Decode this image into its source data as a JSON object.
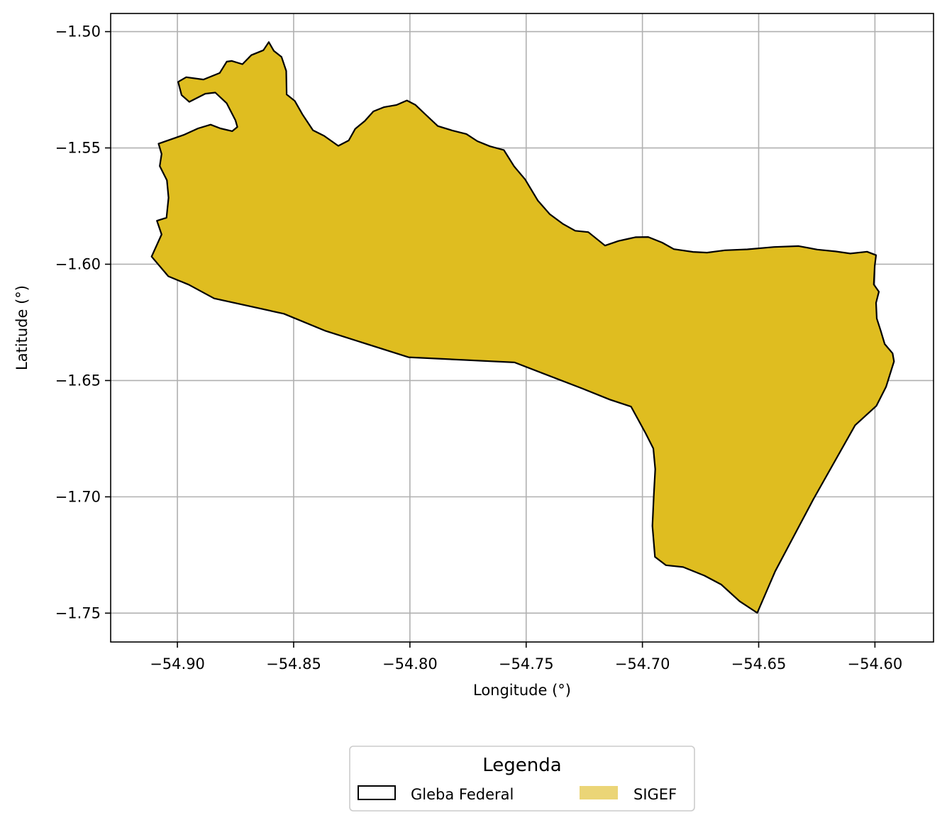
{
  "chart_data": {
    "type": "map",
    "xlabel": "Longitude (°)",
    "ylabel": "Latitude (°)",
    "xlim": [
      -54.9287,
      -54.5748
    ],
    "ylim": [
      -1.7624,
      -1.4922
    ],
    "grid": true,
    "x_ticks": [
      -54.9,
      -54.85,
      -54.8,
      -54.75,
      -54.7,
      -54.65,
      -54.6
    ],
    "x_tick_labels": [
      "−54.90",
      "−54.85",
      "−54.80",
      "−54.75",
      "−54.70",
      "−54.65",
      "−54.60"
    ],
    "y_ticks": [
      -1.5,
      -1.55,
      -1.6,
      -1.65,
      -1.7,
      -1.75
    ],
    "y_tick_labels": [
      "−1.50",
      "−1.55",
      "−1.60",
      "−1.65",
      "−1.70",
      "−1.75"
    ],
    "colors": {
      "gleba_edge": "#000000",
      "sigef_fill": "#dfbd20",
      "legend_sigef": "#ebd577",
      "grid": "#b0b0b0"
    },
    "legend": {
      "title": "Legenda",
      "placement": "bottom-center",
      "entries": [
        {
          "label": "Gleba Federal",
          "style": "outline"
        },
        {
          "label": "SIGEF",
          "style": "fill"
        }
      ]
    },
    "polygon": [
      [
        -54.9081,
        -1.5482
      ],
      [
        -54.8973,
        -1.5444
      ],
      [
        -54.8911,
        -1.5416
      ],
      [
        -54.8857,
        -1.54
      ],
      [
        -54.8815,
        -1.5416
      ],
      [
        -54.8764,
        -1.5428
      ],
      [
        -54.8742,
        -1.541
      ],
      [
        -54.875,
        -1.5382
      ],
      [
        -54.8788,
        -1.5308
      ],
      [
        -54.8837,
        -1.5262
      ],
      [
        -54.888,
        -1.5267
      ],
      [
        -54.8949,
        -1.5302
      ],
      [
        -54.8982,
        -1.5273
      ],
      [
        -54.8997,
        -1.5216
      ],
      [
        -54.8962,
        -1.5196
      ],
      [
        -54.8888,
        -1.5206
      ],
      [
        -54.8818,
        -1.5178
      ],
      [
        -54.8788,
        -1.5129
      ],
      [
        -54.8766,
        -1.5126
      ],
      [
        -54.872,
        -1.514
      ],
      [
        -54.8682,
        -1.5101
      ],
      [
        -54.863,
        -1.508
      ],
      [
        -54.8607,
        -1.5045
      ],
      [
        -54.8585,
        -1.5083
      ],
      [
        -54.8552,
        -1.5109
      ],
      [
        -54.8532,
        -1.5169
      ],
      [
        -54.853,
        -1.527
      ],
      [
        -54.8495,
        -1.5298
      ],
      [
        -54.8462,
        -1.5356
      ],
      [
        -54.8417,
        -1.5424
      ],
      [
        -54.8369,
        -1.5448
      ],
      [
        -54.8308,
        -1.5491
      ],
      [
        -54.8263,
        -1.5468
      ],
      [
        -54.8235,
        -1.5418
      ],
      [
        -54.8194,
        -1.5384
      ],
      [
        -54.8157,
        -1.5343
      ],
      [
        -54.8112,
        -1.5325
      ],
      [
        -54.8057,
        -1.5315
      ],
      [
        -54.8013,
        -1.5296
      ],
      [
        -54.7976,
        -1.5315
      ],
      [
        -54.7931,
        -1.5358
      ],
      [
        -54.788,
        -1.5406
      ],
      [
        -54.7818,
        -1.5425
      ],
      [
        -54.7757,
        -1.544
      ],
      [
        -54.771,
        -1.5471
      ],
      [
        -54.7656,
        -1.5493
      ],
      [
        -54.7596,
        -1.5509
      ],
      [
        -54.7552,
        -1.5579
      ],
      [
        -54.7504,
        -1.5636
      ],
      [
        -54.745,
        -1.5726
      ],
      [
        -54.7399,
        -1.5784
      ],
      [
        -54.7343,
        -1.5826
      ],
      [
        -54.7289,
        -1.5856
      ],
      [
        -54.7233,
        -1.5862
      ],
      [
        -54.7161,
        -1.592
      ],
      [
        -54.7103,
        -1.59
      ],
      [
        -54.703,
        -1.5884
      ],
      [
        -54.6975,
        -1.5883
      ],
      [
        -54.6915,
        -1.5907
      ],
      [
        -54.6865,
        -1.5935
      ],
      [
        -54.6782,
        -1.5947
      ],
      [
        -54.6722,
        -1.595
      ],
      [
        -54.6645,
        -1.594
      ],
      [
        -54.6549,
        -1.5936
      ],
      [
        -54.6434,
        -1.5926
      ],
      [
        -54.6328,
        -1.5922
      ],
      [
        -54.6248,
        -1.5937
      ],
      [
        -54.617,
        -1.5945
      ],
      [
        -54.6106,
        -1.5954
      ],
      [
        -54.6034,
        -1.5946
      ],
      [
        -54.5995,
        -1.5961
      ],
      [
        -54.6001,
        -1.6008
      ],
      [
        -54.6005,
        -1.6087
      ],
      [
        -54.5983,
        -1.6118
      ],
      [
        -54.5995,
        -1.6166
      ],
      [
        -54.5992,
        -1.6233
      ],
      [
        -54.5975,
        -1.6286
      ],
      [
        -54.5958,
        -1.6343
      ],
      [
        -54.5924,
        -1.6383
      ],
      [
        -54.5918,
        -1.6418
      ],
      [
        -54.5952,
        -1.6527
      ],
      [
        -54.5994,
        -1.6609
      ],
      [
        -54.6085,
        -1.6692
      ],
      [
        -54.6265,
        -1.7011
      ],
      [
        -54.6429,
        -1.732
      ],
      [
        -54.6506,
        -1.7499
      ],
      [
        -54.6582,
        -1.7449
      ],
      [
        -54.6661,
        -1.7377
      ],
      [
        -54.6733,
        -1.7339
      ],
      [
        -54.6825,
        -1.7302
      ],
      [
        -54.6899,
        -1.7294
      ],
      [
        -54.6946,
        -1.7258
      ],
      [
        -54.6957,
        -1.7125
      ],
      [
        -54.6951,
        -1.6992
      ],
      [
        -54.6945,
        -1.6881
      ],
      [
        -54.6953,
        -1.6792
      ],
      [
        -54.6986,
        -1.6727
      ],
      [
        -54.7049,
        -1.6612
      ],
      [
        -54.714,
        -1.6582
      ],
      [
        -54.7259,
        -1.6534
      ],
      [
        -54.755,
        -1.6422
      ],
      [
        -54.8006,
        -1.64
      ],
      [
        -54.8362,
        -1.6287
      ],
      [
        -54.8542,
        -1.6213
      ],
      [
        -54.8842,
        -1.6147
      ],
      [
        -54.8951,
        -1.6088
      ],
      [
        -54.9039,
        -1.6052
      ],
      [
        -54.9111,
        -1.5967
      ],
      [
        -54.9068,
        -1.5872
      ],
      [
        -54.9088,
        -1.5813
      ],
      [
        -54.9047,
        -1.58
      ],
      [
        -54.9038,
        -1.5714
      ],
      [
        -54.9045,
        -1.5639
      ],
      [
        -54.9076,
        -1.5578
      ],
      [
        -54.9068,
        -1.5526
      ],
      [
        -54.9081,
        -1.5482
      ]
    ]
  }
}
